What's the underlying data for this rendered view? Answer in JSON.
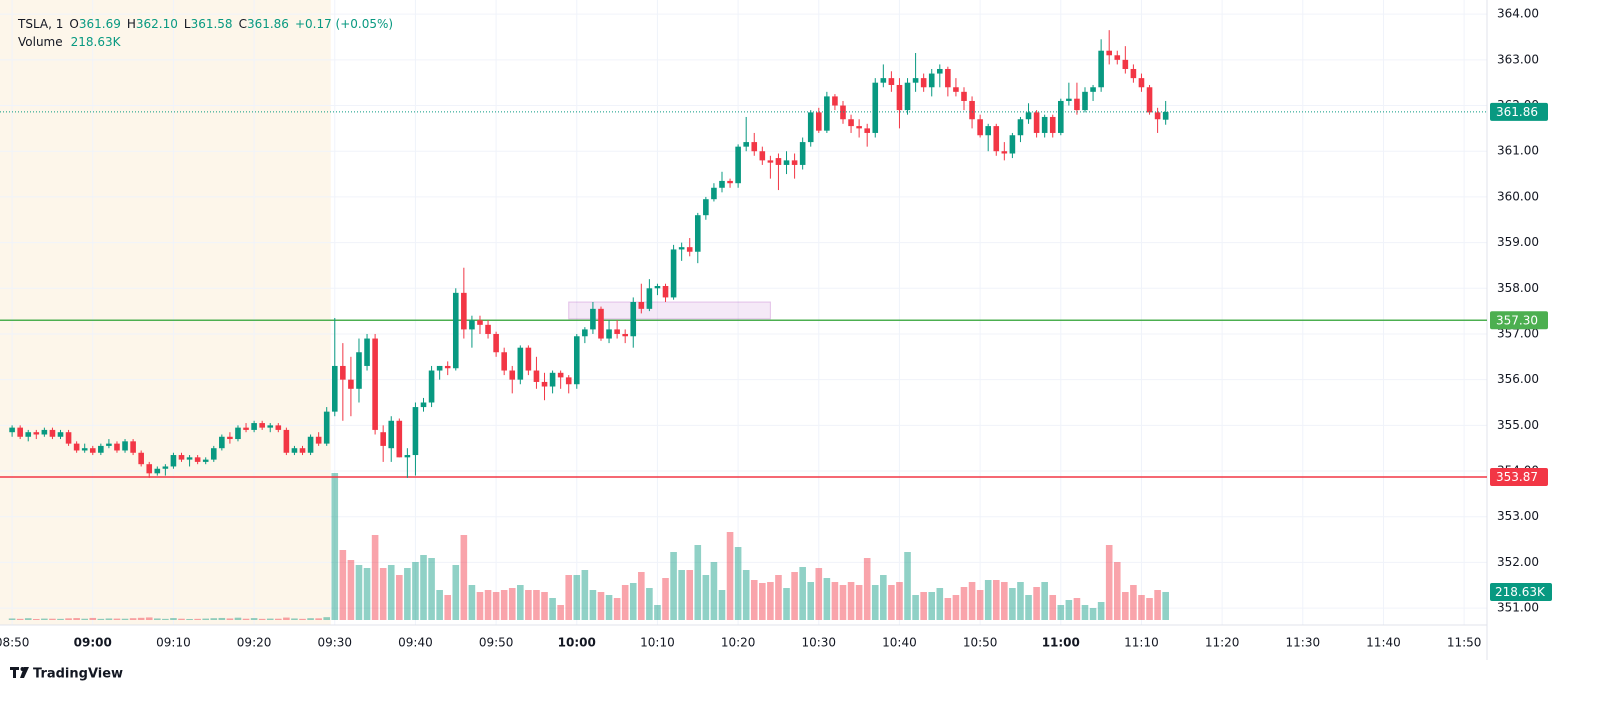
{
  "chart_data": {
    "type": "candlestick",
    "legend": {
      "symbol": "TSLA, 1",
      "o_label": "O",
      "open": "361.69",
      "h_label": "H",
      "high": "362.10",
      "l_label": "L",
      "low": "361.58",
      "c_label": "C",
      "close": "361.86",
      "change": "+0.17 (+0.05%)",
      "volume_label": "Volume",
      "volume": "218.63K"
    },
    "up_color": "#089981",
    "down_color": "#f23645",
    "volume_up_color": "rgba(8,153,129,0.45)",
    "volume_down_color": "rgba(242,54,69,0.45)",
    "xlim": [
      "08:48:30",
      "11:52:50"
    ],
    "xticks": [
      "08:50",
      "09:00",
      "09:10",
      "09:20",
      "09:30",
      "09:40",
      "09:50",
      "10:00",
      "10:10",
      "10:20",
      "10:30",
      "10:40",
      "10:50",
      "11:00",
      "11:10",
      "11:20",
      "11:30",
      "11:40",
      "11:50"
    ],
    "ylim": [
      350.63,
      364.31
    ],
    "yticks": [
      {
        "value": 351,
        "label": "351.00"
      },
      {
        "value": 352,
        "label": "352.00"
      },
      {
        "value": 353,
        "label": "353.00"
      },
      {
        "value": 354,
        "label": "354.00"
      },
      {
        "value": 355,
        "label": "355.00"
      },
      {
        "value": 356,
        "label": "356.00"
      },
      {
        "value": 357,
        "label": "357.00"
      },
      {
        "value": 358,
        "label": "358.00"
      },
      {
        "value": 359,
        "label": "359.00"
      },
      {
        "value": 360,
        "label": "360.00"
      },
      {
        "value": 361,
        "label": "361.00"
      },
      {
        "value": 362,
        "label": "362.00"
      },
      {
        "value": 363,
        "label": "363.00"
      },
      {
        "value": 364,
        "label": "364.00"
      }
    ],
    "grid": true,
    "premarket": {
      "end": "09:30",
      "color": "#fdf6ea"
    },
    "rectangle": {
      "from": "09:59",
      "to": "10:24",
      "top": 357.7,
      "bottom": 357.33,
      "color": "rgba(156,39,176,0.10)",
      "border": "rgba(156,39,176,0.25)"
    },
    "hlines": [
      {
        "value": 357.3,
        "label": "357.30",
        "color": "#4caf50"
      },
      {
        "value": 353.87,
        "label": "353.87",
        "color": "#f23645"
      }
    ],
    "last_price": {
      "value": 361.86,
      "label": "361.86",
      "color": "#089981"
    },
    "x": [
      "08:50",
      "08:51",
      "08:52",
      "08:53",
      "08:54",
      "08:55",
      "08:56",
      "08:57",
      "08:58",
      "08:59",
      "09:00",
      "09:01",
      "09:02",
      "09:03",
      "09:04",
      "09:05",
      "09:06",
      "09:07",
      "09:08",
      "09:09",
      "09:10",
      "09:11",
      "09:12",
      "09:13",
      "09:14",
      "09:15",
      "09:16",
      "09:17",
      "09:18",
      "09:19",
      "09:20",
      "09:21",
      "09:22",
      "09:23",
      "09:24",
      "09:25",
      "09:26",
      "09:27",
      "09:28",
      "09:29",
      "09:30",
      "09:31",
      "09:32",
      "09:33",
      "09:34",
      "09:35",
      "09:36",
      "09:37",
      "09:38",
      "09:39",
      "09:40",
      "09:41",
      "09:42",
      "09:43",
      "09:44",
      "09:45",
      "09:46",
      "09:47",
      "09:48",
      "09:49",
      "09:50",
      "09:51",
      "09:52",
      "09:53",
      "09:54",
      "09:55",
      "09:56",
      "09:57",
      "09:58",
      "09:59",
      "10:00",
      "10:01",
      "10:02",
      "10:03",
      "10:04",
      "10:05",
      "10:06",
      "10:07",
      "10:08",
      "10:09",
      "10:10",
      "10:11",
      "10:12",
      "10:13",
      "10:14",
      "10:15",
      "10:16",
      "10:17",
      "10:18",
      "10:19",
      "10:20",
      "10:21",
      "10:22",
      "10:23",
      "10:24",
      "10:25",
      "10:26",
      "10:27",
      "10:28",
      "10:29",
      "10:30",
      "10:31",
      "10:32",
      "10:33",
      "10:34",
      "10:35",
      "10:36",
      "10:37",
      "10:38",
      "10:39",
      "10:40",
      "10:41",
      "10:42",
      "10:43",
      "10:44",
      "10:45",
      "10:46",
      "10:47",
      "10:48",
      "10:49",
      "10:50",
      "10:51",
      "10:52",
      "10:53",
      "10:54",
      "10:55",
      "10:56",
      "10:57",
      "10:58",
      "10:59",
      "11:00",
      "11:01",
      "11:02",
      "11:03",
      "11:04",
      "11:05",
      "11:06",
      "11:07",
      "11:08",
      "11:09",
      "11:10",
      "11:11",
      "11:12",
      "11:13"
    ],
    "candles": [
      [
        354.85,
        355.0,
        354.75,
        354.95
      ],
      [
        354.95,
        355.0,
        354.7,
        354.75
      ],
      [
        354.75,
        354.9,
        354.65,
        354.85
      ],
      [
        354.85,
        354.9,
        354.7,
        354.8
      ],
      [
        354.8,
        354.95,
        354.75,
        354.9
      ],
      [
        354.9,
        354.95,
        354.7,
        354.75
      ],
      [
        354.75,
        354.9,
        354.7,
        354.85
      ],
      [
        354.85,
        354.9,
        354.55,
        354.6
      ],
      [
        354.6,
        354.65,
        354.4,
        354.45
      ],
      [
        354.45,
        354.6,
        354.4,
        354.5
      ],
      [
        354.5,
        354.55,
        354.35,
        354.4
      ],
      [
        354.4,
        354.6,
        354.35,
        354.55
      ],
      [
        354.55,
        354.7,
        354.5,
        354.6
      ],
      [
        354.6,
        354.65,
        354.4,
        354.45
      ],
      [
        354.45,
        354.7,
        354.4,
        354.65
      ],
      [
        354.65,
        354.7,
        354.35,
        354.4
      ],
      [
        354.4,
        354.45,
        354.1,
        354.15
      ],
      [
        354.15,
        354.2,
        353.85,
        353.95
      ],
      [
        353.95,
        354.1,
        353.9,
        354.05
      ],
      [
        354.05,
        354.15,
        353.9,
        354.1
      ],
      [
        354.1,
        354.4,
        354.05,
        354.35
      ],
      [
        354.35,
        354.4,
        354.2,
        354.25
      ],
      [
        354.25,
        354.35,
        354.1,
        354.3
      ],
      [
        354.3,
        354.35,
        354.15,
        354.2
      ],
      [
        354.2,
        354.3,
        354.15,
        354.25
      ],
      [
        354.25,
        354.55,
        354.2,
        354.5
      ],
      [
        354.5,
        354.8,
        354.45,
        354.75
      ],
      [
        354.75,
        354.85,
        354.6,
        354.7
      ],
      [
        354.7,
        355.0,
        354.65,
        354.95
      ],
      [
        354.95,
        355.05,
        354.85,
        354.9
      ],
      [
        354.9,
        355.1,
        354.85,
        355.05
      ],
      [
        355.05,
        355.1,
        354.9,
        354.95
      ],
      [
        354.95,
        355.05,
        354.85,
        355.0
      ],
      [
        355.0,
        355.05,
        354.85,
        354.9
      ],
      [
        354.9,
        354.95,
        354.35,
        354.4
      ],
      [
        354.4,
        354.55,
        354.35,
        354.5
      ],
      [
        354.5,
        354.55,
        354.35,
        354.4
      ],
      [
        354.4,
        354.8,
        354.35,
        354.75
      ],
      [
        354.75,
        354.85,
        354.55,
        354.6
      ],
      [
        354.6,
        355.4,
        354.55,
        355.3
      ],
      [
        355.3,
        357.35,
        355.2,
        356.3
      ],
      [
        356.3,
        356.8,
        355.1,
        356.0
      ],
      [
        356.0,
        356.5,
        355.2,
        355.8
      ],
      [
        355.8,
        356.9,
        355.5,
        356.6
      ],
      [
        356.3,
        357.0,
        356.2,
        356.9
      ],
      [
        356.9,
        357.0,
        354.8,
        354.9
      ],
      [
        354.85,
        355.0,
        354.2,
        354.55
      ],
      [
        354.5,
        355.2,
        354.2,
        355.1
      ],
      [
        355.1,
        355.15,
        354.3,
        354.3
      ],
      [
        354.3,
        354.5,
        353.85,
        354.35
      ],
      [
        354.35,
        355.5,
        353.9,
        355.4
      ],
      [
        355.4,
        355.6,
        355.3,
        355.5
      ],
      [
        355.5,
        356.3,
        355.4,
        356.2
      ],
      [
        356.2,
        356.3,
        356.0,
        356.3
      ],
      [
        356.3,
        356.4,
        356.1,
        356.25
      ],
      [
        356.25,
        358.0,
        356.2,
        357.9
      ],
      [
        357.9,
        358.45,
        356.9,
        357.1
      ],
      [
        357.1,
        357.4,
        356.7,
        357.3
      ],
      [
        357.3,
        357.4,
        357.0,
        357.2
      ],
      [
        357.2,
        357.3,
        356.9,
        357.0
      ],
      [
        357.0,
        357.05,
        356.5,
        356.6
      ],
      [
        356.6,
        356.7,
        356.1,
        356.2
      ],
      [
        356.2,
        356.3,
        355.7,
        356.0
      ],
      [
        356.0,
        356.75,
        355.9,
        356.7
      ],
      [
        356.7,
        356.75,
        356.1,
        356.2
      ],
      [
        356.2,
        356.5,
        355.8,
        355.95
      ],
      [
        355.95,
        356.15,
        355.55,
        355.85
      ],
      [
        355.85,
        356.2,
        355.7,
        356.15
      ],
      [
        356.15,
        356.2,
        355.8,
        356.05
      ],
      [
        356.05,
        356.1,
        355.7,
        355.9
      ],
      [
        355.9,
        357.0,
        355.8,
        356.95
      ],
      [
        356.95,
        357.15,
        356.8,
        357.1
      ],
      [
        357.1,
        357.7,
        357.0,
        357.55
      ],
      [
        357.55,
        357.6,
        356.85,
        356.9
      ],
      [
        356.9,
        357.3,
        356.8,
        357.1
      ],
      [
        357.1,
        357.3,
        356.9,
        357.0
      ],
      [
        357.0,
        357.1,
        356.8,
        356.95
      ],
      [
        356.95,
        357.8,
        356.7,
        357.7
      ],
      [
        357.7,
        358.1,
        357.45,
        357.55
      ],
      [
        357.55,
        358.2,
        357.5,
        358.0
      ],
      [
        358.0,
        358.1,
        357.85,
        358.05
      ],
      [
        358.05,
        358.1,
        357.7,
        357.8
      ],
      [
        357.8,
        358.95,
        357.75,
        358.85
      ],
      [
        358.85,
        359.0,
        358.6,
        358.9
      ],
      [
        358.9,
        359.1,
        358.7,
        358.8
      ],
      [
        358.8,
        359.65,
        358.55,
        359.6
      ],
      [
        359.6,
        360.0,
        359.5,
        359.95
      ],
      [
        359.95,
        360.3,
        359.9,
        360.2
      ],
      [
        360.2,
        360.55,
        360.1,
        360.35
      ],
      [
        360.35,
        360.4,
        360.2,
        360.3
      ],
      [
        360.3,
        361.15,
        360.2,
        361.1
      ],
      [
        361.1,
        361.75,
        361.0,
        361.2
      ],
      [
        361.2,
        361.4,
        360.9,
        361.0
      ],
      [
        361.0,
        361.1,
        360.7,
        360.8
      ],
      [
        360.8,
        360.9,
        360.4,
        360.75
      ],
      [
        360.85,
        360.95,
        360.15,
        360.7
      ],
      [
        360.7,
        361.0,
        360.5,
        360.8
      ],
      [
        360.8,
        360.95,
        360.4,
        360.7
      ],
      [
        360.7,
        361.3,
        360.6,
        361.2
      ],
      [
        361.2,
        361.9,
        361.1,
        361.85
      ],
      [
        361.85,
        361.95,
        361.4,
        361.45
      ],
      [
        361.45,
        362.3,
        361.4,
        362.2
      ],
      [
        362.2,
        362.25,
        361.9,
        362.0
      ],
      [
        362.0,
        362.1,
        361.6,
        361.7
      ],
      [
        361.7,
        361.8,
        361.4,
        361.55
      ],
      [
        361.55,
        361.7,
        361.3,
        361.5
      ],
      [
        361.5,
        361.6,
        361.1,
        361.4
      ],
      [
        361.4,
        362.6,
        361.3,
        362.5
      ],
      [
        362.5,
        362.9,
        362.4,
        362.6
      ],
      [
        362.6,
        362.75,
        362.3,
        362.45
      ],
      [
        362.45,
        362.6,
        361.5,
        361.9
      ],
      [
        361.9,
        362.6,
        361.8,
        362.5
      ],
      [
        362.5,
        363.15,
        362.3,
        362.6
      ],
      [
        362.6,
        362.7,
        362.3,
        362.4
      ],
      [
        362.4,
        362.8,
        362.2,
        362.7
      ],
      [
        362.7,
        362.9,
        362.4,
        362.8
      ],
      [
        362.8,
        362.85,
        362.2,
        362.4
      ],
      [
        362.4,
        362.6,
        362.2,
        362.3
      ],
      [
        362.3,
        362.4,
        361.9,
        362.1
      ],
      [
        362.1,
        362.2,
        361.5,
        361.7
      ],
      [
        361.7,
        361.8,
        361.3,
        361.35
      ],
      [
        361.35,
        361.6,
        361.0,
        361.55
      ],
      [
        361.55,
        361.6,
        360.9,
        361.0
      ],
      [
        361.0,
        361.2,
        360.8,
        360.95
      ],
      [
        360.95,
        361.4,
        360.85,
        361.35
      ],
      [
        361.35,
        361.75,
        361.2,
        361.7
      ],
      [
        361.7,
        362.05,
        361.6,
        361.85
      ],
      [
        361.85,
        361.9,
        361.3,
        361.4
      ],
      [
        361.4,
        361.8,
        361.3,
        361.75
      ],
      [
        361.75,
        361.8,
        361.3,
        361.4
      ],
      [
        361.4,
        362.15,
        361.35,
        362.1
      ],
      [
        362.1,
        362.5,
        362.0,
        362.15
      ],
      [
        362.15,
        362.5,
        361.8,
        361.9
      ],
      [
        361.9,
        362.4,
        361.85,
        362.3
      ],
      [
        362.3,
        362.45,
        362.1,
        362.4
      ],
      [
        362.4,
        363.45,
        362.3,
        363.2
      ],
      [
        363.2,
        363.65,
        362.9,
        363.1
      ],
      [
        363.1,
        363.2,
        362.9,
        363.0
      ],
      [
        363.0,
        363.3,
        362.7,
        362.8
      ],
      [
        362.8,
        362.9,
        362.5,
        362.6
      ],
      [
        362.6,
        362.7,
        362.3,
        362.4
      ],
      [
        362.4,
        362.45,
        361.8,
        361.85
      ],
      [
        361.85,
        361.95,
        361.4,
        361.7
      ],
      [
        361.69,
        362.1,
        361.58,
        361.86
      ]
    ],
    "volume": [
      12000,
      9000,
      14000,
      8000,
      11000,
      10000,
      9000,
      13000,
      15000,
      10000,
      16000,
      9000,
      12000,
      11000,
      10000,
      14000,
      17000,
      20000,
      12000,
      9000,
      15000,
      10000,
      8000,
      9000,
      11000,
      14000,
      16000,
      12000,
      18000,
      10000,
      15000,
      9000,
      11000,
      10000,
      19000,
      12000,
      9000,
      14000,
      13000,
      22000,
      1146600,
      546000,
      468000,
      429000,
      405600,
      663000,
      405600,
      429000,
      351000,
      405600,
      452400,
      507000,
      483600,
      234000,
      195000,
      429000,
      663000,
      273000,
      218400,
      234000,
      218400,
      234000,
      249600,
      273000,
      234000,
      234000,
      218400,
      171600,
      117000,
      351000,
      351000,
      390000,
      234000,
      218400,
      195000,
      171600,
      273000,
      288600,
      374400,
      249600,
      117000,
      327600,
      530400,
      390000,
      390000,
      585000,
      351000,
      452400,
      234000,
      686400,
      569400,
      390000,
      312000,
      288600,
      296400,
      351000,
      249600,
      374400,
      413400,
      296400,
      405600,
      327600,
      296400,
      273000,
      296400,
      273000,
      483600,
      273000,
      351000,
      273000,
      296400,
      530400,
      195000,
      218400,
      218400,
      249600,
      171600,
      195000,
      257400,
      296400,
      234000,
      312000,
      312000,
      296400,
      249600,
      296400,
      195000,
      257400,
      296400,
      195000,
      117000,
      156000,
      171600,
      117000,
      93600,
      140400,
      585000,
      452400,
      218400,
      273000,
      195000,
      171600,
      234000,
      218630
    ]
  },
  "brand": "TradingView"
}
